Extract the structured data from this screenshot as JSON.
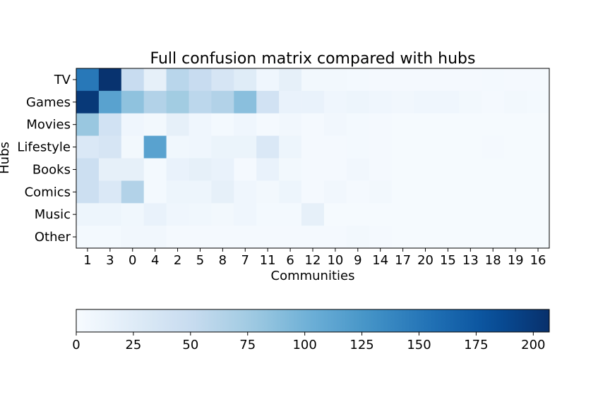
{
  "chart_data": {
    "type": "heatmap",
    "title": "Full confusion matrix compared with hubs",
    "xlabel": "Communities",
    "ylabel": "Hubs",
    "x_categories": [
      "1",
      "3",
      "0",
      "4",
      "2",
      "5",
      "8",
      "7",
      "11",
      "6",
      "12",
      "10",
      "9",
      "14",
      "17",
      "20",
      "15",
      "13",
      "18",
      "19",
      "16"
    ],
    "y_categories": [
      "TV",
      "Games",
      "Movies",
      "Lifestyle",
      "Books",
      "Comics",
      "Music",
      "Other"
    ],
    "values": [
      [
        150,
        205,
        50,
        18,
        60,
        50,
        35,
        25,
        8,
        18,
        5,
        5,
        4,
        3,
        3,
        3,
        3,
        3,
        4,
        3,
        3
      ],
      [
        200,
        115,
        85,
        65,
        75,
        58,
        65,
        88,
        40,
        14,
        14,
        8,
        10,
        8,
        6,
        8,
        8,
        5,
        3,
        5,
        4
      ],
      [
        80,
        40,
        8,
        5,
        18,
        8,
        4,
        8,
        3,
        6,
        3,
        6,
        4,
        3,
        2,
        2,
        2,
        2,
        2,
        2,
        2
      ],
      [
        30,
        35,
        5,
        115,
        7,
        8,
        12,
        12,
        30,
        10,
        3,
        3,
        4,
        3,
        2,
        2,
        2,
        2,
        3,
        2,
        2
      ],
      [
        45,
        18,
        18,
        4,
        14,
        18,
        14,
        3,
        14,
        5,
        3,
        3,
        6,
        3,
        2,
        2,
        2,
        2,
        2,
        2,
        2
      ],
      [
        45,
        30,
        65,
        4,
        10,
        10,
        18,
        8,
        5,
        10,
        3,
        6,
        3,
        5,
        2,
        2,
        2,
        2,
        2,
        2,
        2
      ],
      [
        10,
        10,
        7,
        14,
        8,
        7,
        5,
        8,
        4,
        4,
        18,
        2,
        2,
        2,
        2,
        2,
        2,
        2,
        2,
        2,
        2
      ],
      [
        4,
        4,
        6,
        6,
        3,
        3,
        3,
        3,
        3,
        3,
        3,
        3,
        5,
        3,
        2,
        2,
        2,
        2,
        2,
        2,
        2
      ]
    ],
    "colormap": "Blues",
    "color_range": [
      0,
      207
    ],
    "colorbar_ticks": [
      0,
      25,
      50,
      75,
      100,
      125,
      150,
      175,
      200
    ],
    "colorbar_orientation": "horizontal",
    "colorbar_placement": "bottom",
    "grid": false
  }
}
